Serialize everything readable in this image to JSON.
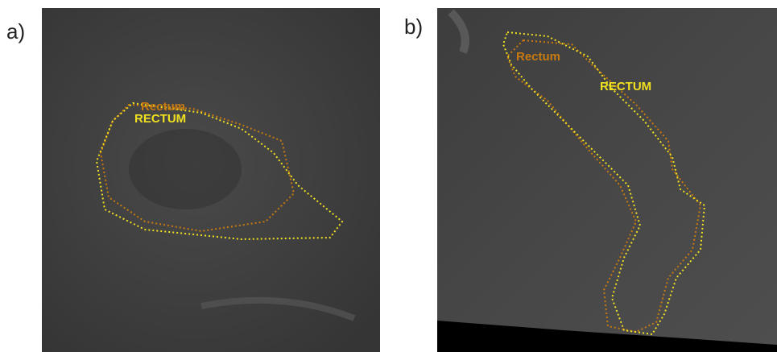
{
  "panels": [
    {
      "label": "a)",
      "contours": [
        {
          "label": "Rectum"
        },
        {
          "label": "RECTUM"
        }
      ]
    },
    {
      "label": "b)",
      "contours": [
        {
          "label": "Rectum"
        },
        {
          "label": "RECTUM"
        }
      ]
    }
  ]
}
